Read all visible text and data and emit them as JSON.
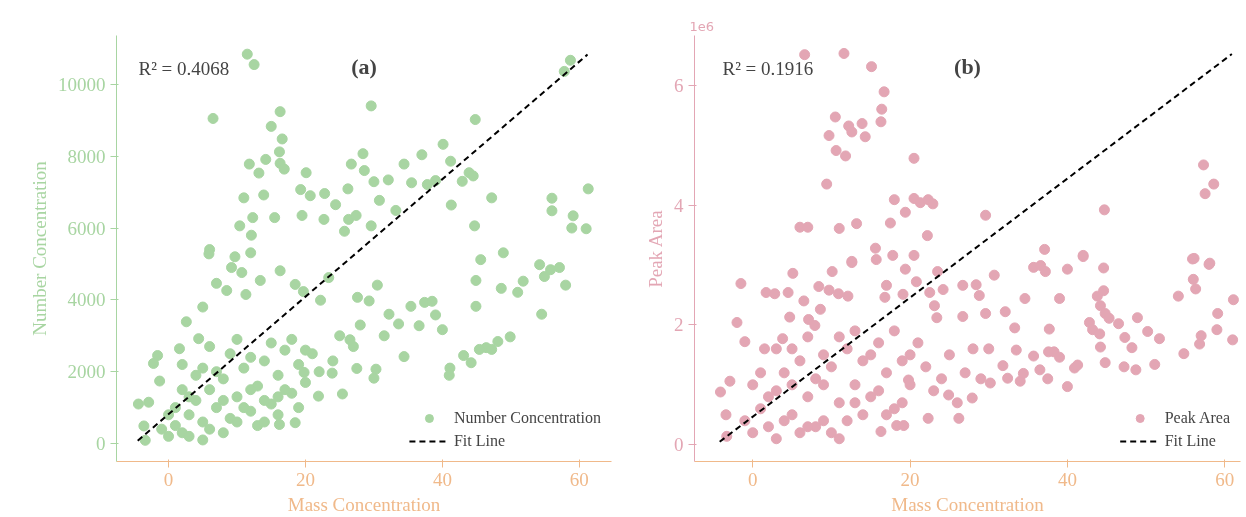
{
  "chart_data": [
    {
      "type": "scatter",
      "title": "(a)",
      "xlabel": "Mass Concentration",
      "ylabel": "Number Concentration",
      "annotations": [
        "R² = 0.4068"
      ],
      "xlim": [
        -7.6,
        64.7
      ],
      "ylim": [
        -500,
        11360
      ],
      "xticks": [
        0,
        20,
        40,
        60
      ],
      "yticks": [
        0,
        2000,
        4000,
        6000,
        8000,
        10000
      ],
      "grid": false,
      "legend": "bottom right",
      "series": [
        {
          "name": "Number Concentration",
          "color": "#a8d5a2",
          "marker": "circle",
          "x": [
            11.5,
            12.5,
            6.5,
            16.3,
            29.6,
            44.8,
            40.1,
            15,
            16.6,
            16.2,
            28.4,
            11.8,
            14.2,
            13.2,
            16.3,
            16.9,
            20.1,
            26.7,
            28.6,
            34.4,
            37,
            41.2,
            43.9,
            44.5,
            42.9,
            39,
            37.8,
            35.5,
            32.1,
            30,
            26.2,
            22.8,
            19.3,
            13.9,
            11,
            20.7,
            24.4,
            30.8,
            33.2,
            41.3,
            47.2,
            56,
            56,
            59.1,
            61.3,
            44.7,
            58.9,
            61,
            29.6,
            10.4,
            12.3,
            15.5,
            19.5,
            22.7,
            26.3,
            27.4,
            57.8,
            58.7,
            12.1,
            6,
            25.7,
            5.9,
            12,
            9.7,
            9.2,
            10.7,
            7,
            8.5,
            11.3,
            5,
            2.6,
            4.4,
            1.6,
            -1.6,
            -2.2,
            -1.3,
            -4.4,
            -2.9,
            -3.6,
            -3.4,
            13.4,
            16.3,
            18.5,
            19.7,
            22.2,
            23.4,
            30.5,
            27.6,
            29.3,
            32.2,
            33.6,
            35.4,
            37.4,
            38.5,
            39,
            40,
            36.6,
            34.4,
            41.1,
            41,
            43.1,
            44.2,
            44.9,
            44.9,
            45.6,
            48.9,
            48.6,
            51,
            51.8,
            54.2,
            54.9,
            55.8,
            57.1,
            58,
            54.5,
            49.9,
            48.1,
            46.4,
            45.4,
            47.2,
            30.3,
            30,
            27.5,
            25.4,
            21.9,
            18.5,
            16.2,
            23.9,
            19.8,
            26.5,
            31.5,
            0,
            1,
            2,
            3,
            4,
            5,
            6,
            7,
            8,
            9,
            10,
            11,
            12,
            13,
            14,
            15,
            16,
            17,
            18,
            19,
            20,
            21,
            22,
            1,
            2,
            3,
            4,
            5,
            6,
            7,
            8,
            9,
            10,
            11,
            12,
            13,
            14,
            15,
            16,
            17,
            18,
            0,
            -1,
            2,
            3,
            5,
            6,
            8,
            10,
            12,
            14,
            16,
            19,
            20,
            24,
            25,
            27,
            28
          ],
          "values": [
            10840,
            10550,
            9050,
            9240,
            9400,
            9020,
            8330,
            8830,
            8480,
            8120,
            8070,
            7780,
            7910,
            7530,
            7800,
            7640,
            7540,
            7780,
            7600,
            7780,
            8040,
            7860,
            7540,
            7450,
            7300,
            7320,
            7210,
            7260,
            7340,
            7290,
            7090,
            6960,
            7070,
            6920,
            6840,
            6900,
            6650,
            6770,
            6490,
            6640,
            6840,
            6830,
            6480,
            6340,
            7090,
            6060,
            6000,
            5980,
            6060,
            6060,
            6290,
            6290,
            6350,
            6240,
            6240,
            6350,
            10360,
            10670,
            5800,
            5400,
            5910,
            5280,
            5310,
            5200,
            4900,
            4760,
            4460,
            4260,
            4150,
            3800,
            3390,
            2920,
            2640,
            2450,
            2230,
            1740,
            1100,
            1150,
            490,
            90,
            4540,
            4810,
            4430,
            4230,
            3990,
            4620,
            4410,
            4070,
            3970,
            3600,
            3330,
            3820,
            3930,
            3960,
            3580,
            3170,
            3280,
            2420,
            2100,
            1900,
            2450,
            2250,
            3820,
            4540,
            5120,
            5310,
            4320,
            4210,
            4520,
            4980,
            4650,
            4840,
            4900,
            4410,
            3600,
            2970,
            2840,
            2670,
            2620,
            2620,
            2070,
            1820,
            2090,
            1380,
            1320,
            580,
            530,
            1960,
            1980,
            2890,
            3000,
            200,
            500,
            300,
            800,
            1200,
            600,
            1500,
            1000,
            1800,
            700,
            1300,
            2100,
            900,
            1600,
            2300,
            1100,
            1900,
            2600,
            1400,
            2200,
            1700,
            2500,
            2000,
            1000,
            1500,
            200,
            1900,
            100,
            400,
            2000,
            300,
            2500,
            600,
            1000,
            1500,
            500,
            1200,
            2800,
            800,
            1500,
            2900,
            800,
            400,
            2200,
            1300,
            2100,
            2700,
            1200,
            2900,
            2400,
            600,
            1300,
            1000,
            2600,
            2300,
            3000,
            2700,
            3300
          ]
        },
        {
          "name": "Fit Line",
          "color": "#000000",
          "type": "line",
          "line_style": "dashed",
          "marker": "none",
          "x": [
            -4.5,
            61.2
          ],
          "values": [
            80,
            10830
          ]
        }
      ]
    },
    {
      "type": "scatter",
      "title": "(b)",
      "xlabel": "Mass Concentration",
      "ylabel": "Peak Area",
      "annotations": [
        "R² = 0.1916",
        "1e6"
      ],
      "xlim": [
        -7.4,
        62
      ],
      "ylim": [
        -0.28,
        6.83
      ],
      "xticks": [
        0,
        20,
        40,
        60
      ],
      "yticks": [
        0,
        2,
        4,
        6
      ],
      "grid": false,
      "legend": "bottom right",
      "series": [
        {
          "name": "Peak Area",
          "color": "#e3a6b4",
          "marker": "circle",
          "x": [
            6.6,
            11.6,
            15.1,
            16.7,
            16.4,
            16.3,
            10.5,
            12.2,
            13.9,
            12.6,
            9.7,
            14.3,
            10.6,
            11.8,
            20.5,
            9.4,
            18,
            20.5,
            21.3,
            22.3,
            22.9,
            19.4,
            29.6,
            44.7,
            57.3,
            58.6,
            57.5,
            6,
            7,
            11,
            13.2,
            17.5,
            22.2,
            15.6,
            17.8,
            20.5,
            37.1,
            42,
            55.9,
            58,
            12.6,
            -1.5,
            -2,
            -1,
            -4.1,
            -3.4,
            -2.9,
            -3.3,
            5.1,
            1.7,
            4.5,
            2.8,
            10.1,
            12.6,
            8.4,
            9.7,
            10.9,
            12.1,
            6.5,
            8.6,
            4.7,
            7.1,
            7.9,
            3.8,
            1.5,
            20.8,
            19.4,
            15.7,
            17,
            16.8,
            19.1,
            22.5,
            23.5,
            24.2,
            23.1,
            23.4,
            26.7,
            28.4,
            28.8,
            26.7,
            30.7,
            29.6,
            32.1,
            33.3,
            34.6,
            35.7,
            36.6,
            37.2,
            39,
            40,
            42,
            43.8,
            44.6,
            44.6,
            44.2,
            42.8,
            43.2,
            44.1,
            44.8,
            45.3,
            46.5,
            47.3,
            48.9,
            48.2,
            50.2,
            51.7,
            44.2,
            44.8,
            47.2,
            48.7,
            51.1,
            54.8,
            54.1,
            56.1,
            58.1,
            56,
            56.3,
            57,
            56.8,
            59,
            59.1,
            61.1,
            61,
            40,
            40.9,
            41.3,
            37.7,
            37.6,
            38.3,
            39,
            35.7,
            36.5,
            37.5,
            34,
            34.4,
            32.4,
            31.8,
            33.5,
            30.2,
            27.9,
            26.2,
            22.3,
            16.3,
            18.3,
            19.2,
            19.8,
            24.9,
            0,
            1,
            2,
            3,
            4,
            5,
            6,
            7,
            8,
            9,
            10,
            11,
            12,
            13,
            14,
            15,
            16,
            17,
            18,
            19,
            20,
            21,
            22,
            -1,
            0,
            1,
            2,
            3,
            4,
            5,
            6,
            7,
            8,
            9,
            10,
            11,
            12,
            13,
            14,
            15,
            16,
            17,
            18,
            19,
            20,
            23,
            24,
            25,
            26,
            27,
            28,
            29,
            30,
            3,
            5,
            7,
            9,
            11,
            13
          ],
          "values": [
            6.51,
            6.53,
            6.31,
            5.89,
            5.6,
            5.39,
            5.47,
            5.32,
            5.36,
            5.22,
            5.16,
            5.14,
            4.91,
            4.82,
            4.78,
            4.35,
            4.09,
            4.11,
            4.04,
            4.09,
            4.02,
            3.88,
            3.83,
            3.92,
            4.67,
            4.35,
            4.19,
            3.63,
            3.63,
            3.61,
            3.69,
            3.7,
            3.49,
            3.28,
            3.16,
            3.16,
            3.26,
            3.14,
            3.1,
            3.01,
            3.04,
            2.69,
            2.04,
            1.72,
            0.88,
            0.5,
            1.06,
            0.14,
            2.86,
            2.54,
            2.54,
            2.52,
            2.89,
            3.06,
            2.64,
            2.58,
            2.52,
            2.48,
            2.4,
            2.26,
            2.13,
            2.09,
            1.99,
            1.77,
            1.6,
            2.72,
            2.93,
            3.09,
            2.66,
            2.46,
            2.51,
            2.54,
            2.89,
            2.59,
            2.32,
            2.12,
            2.66,
            2.67,
            2.49,
            2.14,
            2.83,
            2.19,
            2.22,
            1.95,
            2.44,
            2.96,
            2.99,
            2.89,
            2.44,
            2.93,
            3.16,
            2.48,
            2.57,
            2.95,
            2.32,
            2.04,
            1.92,
            1.85,
            2.19,
            2.11,
            2.02,
            1.79,
            2.12,
            1.62,
            1.89,
            1.77,
            1.63,
            1.37,
            1.3,
            1.25,
            1.34,
            1.52,
            2.48,
            3.11,
            3.03,
            2.76,
            2.6,
            1.82,
            1.68,
            1.92,
            2.19,
            2.42,
            1.75,
            0.97,
            1.28,
            1.33,
            1.93,
            1.55,
            1.55,
            1.46,
            1.48,
            1.25,
            1.1,
            1.06,
            1.19,
            1.11,
            1.32,
            1.58,
            1.03,
            0.78,
            0.44,
            0.44,
            0.22,
            0.32,
            0.32,
            1.08,
            0.83,
            0.2,
            0.6,
            0.3,
            0.9,
            1.2,
            0.5,
            1.4,
            0.8,
            1.1,
            0.4,
            1.3,
            0.7,
            1.6,
            1.0,
            0.5,
            1.5,
            0.9,
            1.2,
            0.6,
            1.4,
            1.0,
            1.7,
            1.3,
            0.4,
            1.0,
            1.2,
            0.8,
            0.1,
            0.4,
            1.6,
            0.2,
            1.8,
            0.3,
            1.5,
            0.2,
            1.8,
            0.4,
            1.9,
            1.4,
            0.8,
            1.7,
            0.5,
            1.9,
            0.7,
            1.5,
            0.9,
            1.1,
            1.5,
            0.7,
            1.2,
            1.6,
            1.1,
            1.6,
            1.6,
            1.0,
            0.3,
            1.0,
            0.1,
            0.7
          ]
        },
        {
          "name": "Fit Line",
          "color": "#000000",
          "type": "line",
          "line_style": "dashed",
          "marker": "none",
          "x": [
            -4.2,
            60.9
          ],
          "values": [
            0.05,
            6.52
          ]
        }
      ]
    }
  ]
}
